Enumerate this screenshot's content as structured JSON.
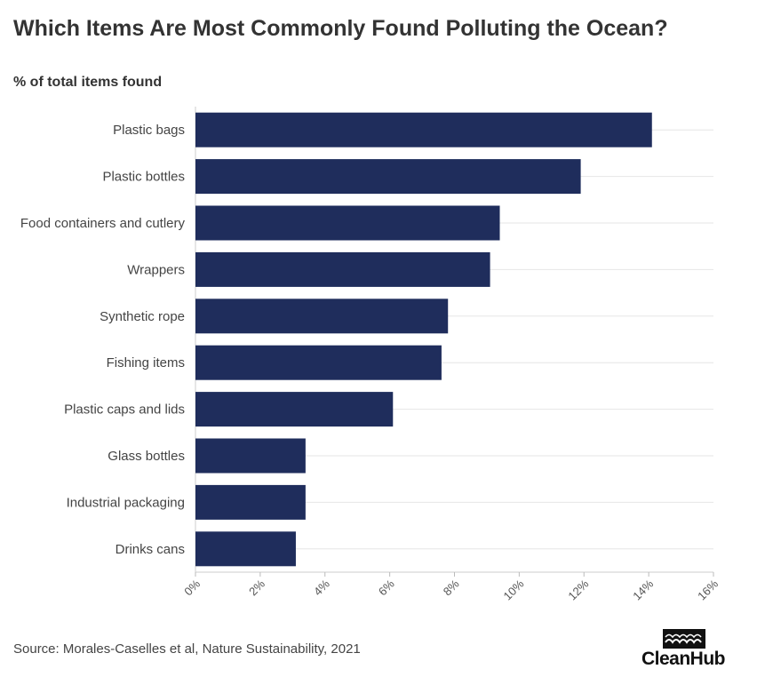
{
  "title": "Which Items Are Most Commonly Found Polluting the Ocean?",
  "subtitle": "% of total items found",
  "source": "Source: Morales-Caselles et al, Nature Sustainability, 2021",
  "brand": {
    "name": "CleanHub",
    "icon": "waves-icon"
  },
  "colors": {
    "bar": "#1f2d5c",
    "grid": "#e6e6e6",
    "text": "#333333"
  },
  "chart_data": {
    "type": "bar",
    "orientation": "horizontal",
    "categories": [
      "Plastic bags",
      "Plastic bottles",
      "Food containers and cutlery",
      "Wrappers",
      "Synthetic rope",
      "Fishing items",
      "Plastic caps and lids",
      "Glass bottles",
      "Industrial packaging",
      "Drinks cans"
    ],
    "values": [
      14.1,
      11.9,
      9.4,
      9.1,
      7.8,
      7.6,
      6.1,
      3.4,
      3.4,
      3.1
    ],
    "xlim": [
      0,
      16
    ],
    "xticks": [
      0,
      2,
      4,
      6,
      8,
      10,
      12,
      14,
      16
    ],
    "xtick_labels": [
      "0%",
      "2%",
      "4%",
      "6%",
      "8%",
      "10%",
      "12%",
      "14%",
      "16%"
    ],
    "xlabel": "",
    "ylabel": "",
    "grid": true,
    "legend": "none"
  }
}
